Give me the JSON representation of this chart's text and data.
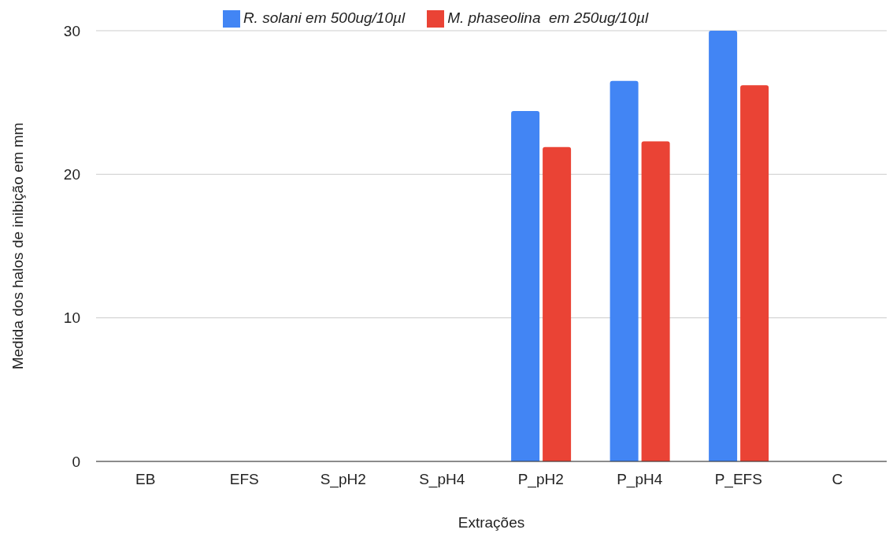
{
  "chart_data": {
    "type": "bar",
    "xlabel": "Extrações",
    "ylabel": "Medida dos halos de inibição em mm",
    "categories": [
      "EB",
      "EFS",
      "S_pH2",
      "S_pH4",
      "P_pH2",
      "P_pH4",
      "P_EFS",
      "C"
    ],
    "series": [
      {
        "name": "R. solani em 500ug/10µl",
        "color": "#4285f4",
        "values": [
          0,
          0,
          0,
          0,
          24.4,
          26.5,
          30,
          0
        ]
      },
      {
        "name": "M. phaseolina  em 250ug/10µl",
        "color": "#ea4335",
        "values": [
          0,
          0,
          0,
          0,
          21.9,
          22.3,
          26.2,
          0
        ]
      }
    ],
    "ylim": [
      0,
      30
    ],
    "yticks": [
      0,
      10,
      20,
      30
    ],
    "grid": "y",
    "legend": "top"
  }
}
